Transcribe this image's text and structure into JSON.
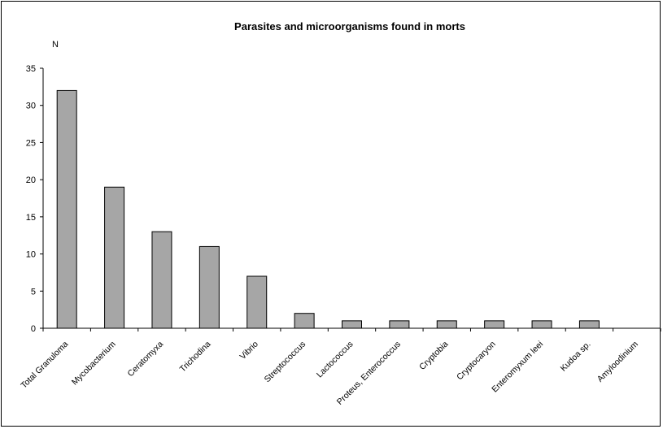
{
  "chart_data": {
    "type": "bar",
    "title": "Parasites and microorganisms found in morts",
    "ylabel": "N",
    "xlabel": "",
    "ylim": [
      0,
      35
    ],
    "yticks": [
      0,
      5,
      10,
      15,
      20,
      25,
      30,
      35
    ],
    "grid": false,
    "legend": "none",
    "bar_color": "#a6a6a6",
    "categories": [
      "Total Granuloma",
      "Mycobacterium",
      "Ceratomyxa",
      "Trichodina",
      "Vibrio",
      "Streptococcus",
      "Lactococcus",
      "Proteus, Enterococcus",
      "Cryptobia",
      "Cryptocaryon",
      "Enteromyxum leei",
      "Kudoa sp.",
      "Amyloodinium"
    ],
    "values": [
      32,
      19,
      13,
      11,
      7,
      2,
      1,
      1,
      1,
      1,
      1,
      1,
      0
    ]
  }
}
